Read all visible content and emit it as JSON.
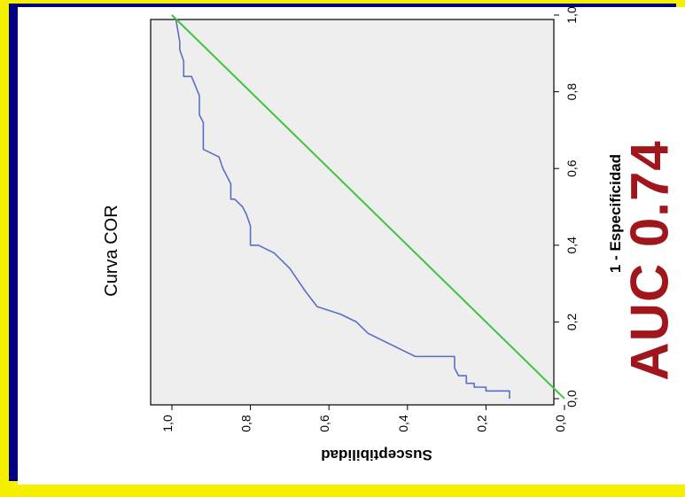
{
  "chart_data": {
    "type": "line",
    "title": "Curva COR",
    "xlabel": "1 - Especificidad",
    "ylabel": "Susceptibilidad",
    "xlim": [
      0,
      1
    ],
    "ylim": [
      0,
      1
    ],
    "x_ticks": [
      "0,0",
      "0,2",
      "0,4",
      "0,6",
      "0,8",
      "1,0"
    ],
    "y_ticks": [
      "0,0",
      "0,2",
      "0,4",
      "0,6",
      "0,8",
      "1,0"
    ],
    "annotation": "AUC 0.74",
    "grid": false,
    "colors": {
      "curve": "#5a6fc4",
      "reference": "#3cc43c",
      "plot_background": "#eeeeef",
      "annotation": "#a0161c"
    },
    "series": [
      {
        "x": [
          0,
          0.02,
          0.02,
          0.03,
          0.03,
          0.04,
          0.04,
          0.06,
          0.06,
          0.08,
          0.11,
          0.11,
          0.12,
          0.17,
          0.2,
          0.22,
          0.24,
          0.28,
          0.31,
          0.34,
          0.38,
          0.4,
          0.4,
          0.45,
          0.48,
          0.5,
          0.52,
          0.52,
          0.56,
          0.6,
          0.63,
          0.65,
          0.72,
          0.74,
          0.79,
          0.84,
          0.84,
          0.88,
          0.91,
          0.93,
          0.99,
          1.0
        ],
        "y": [
          0.14,
          0.14,
          0.2,
          0.2,
          0.23,
          0.23,
          0.25,
          0.25,
          0.27,
          0.28,
          0.28,
          0.38,
          0.4,
          0.5,
          0.53,
          0.57,
          0.63,
          0.66,
          0.68,
          0.7,
          0.74,
          0.78,
          0.8,
          0.8,
          0.81,
          0.82,
          0.84,
          0.85,
          0.85,
          0.87,
          0.88,
          0.92,
          0.92,
          0.93,
          0.93,
          0.95,
          0.97,
          0.97,
          0.98,
          0.98,
          0.99,
          1.0
        ]
      },
      {
        "x": [
          0,
          1
        ],
        "y": [
          0,
          1
        ]
      }
    ]
  }
}
